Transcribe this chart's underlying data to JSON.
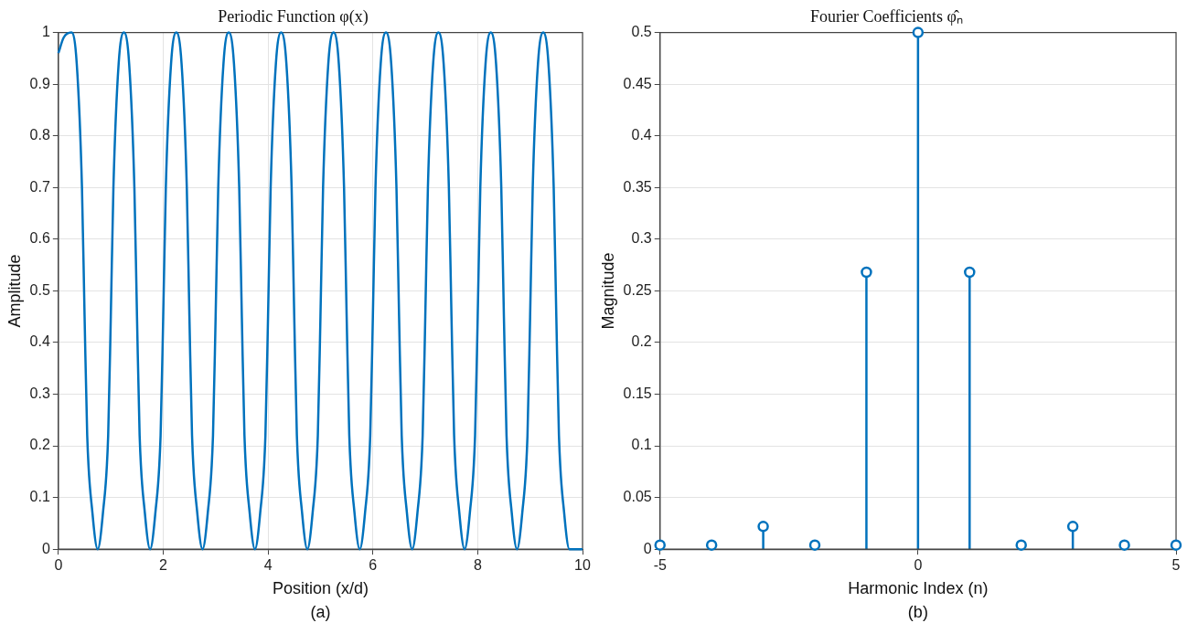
{
  "chart_data": [
    {
      "type": "line",
      "title": "Periodic Function φ(x)",
      "xlabel": "Position (x/d)",
      "ylabel": "Amplitude",
      "annotations": [
        "(a)"
      ],
      "series": [
        {
          "color": "#0072bd",
          "x": [
            0,
            0.1,
            0.25,
            0.35,
            0.45,
            0.5,
            0.55,
            0.65,
            0.75,
            0.85,
            0.95,
            1,
            1.05,
            1.15,
            1.25,
            1.35,
            1.45,
            1.5,
            1.55,
            1.65,
            1.75,
            1.85,
            1.95,
            2,
            2.05,
            2.15,
            2.25,
            2.35,
            2.45,
            2.5,
            2.55,
            2.65,
            2.75,
            2.85,
            2.95,
            3,
            3.05,
            3.15,
            3.25,
            3.35,
            3.45,
            3.5,
            3.55,
            3.65,
            3.75,
            3.85,
            3.95,
            4,
            4.05,
            4.15,
            4.25,
            4.35,
            4.45,
            4.5,
            4.55,
            4.65,
            4.75,
            4.85,
            4.95,
            5,
            5.05,
            5.15,
            5.25,
            5.35,
            5.45,
            5.5,
            5.55,
            5.65,
            5.75,
            5.85,
            5.95,
            6,
            6.05,
            6.15,
            6.25,
            6.35,
            6.45,
            6.5,
            6.55,
            6.65,
            6.75,
            6.85,
            6.95,
            7,
            7.05,
            7.15,
            7.25,
            7.35,
            7.45,
            7.5,
            7.55,
            7.65,
            7.75,
            7.85,
            7.95,
            8,
            8.05,
            8.15,
            8.25,
            8.35,
            8.45,
            8.5,
            8.55,
            8.65,
            8.75,
            8.85,
            8.95,
            9,
            9.05,
            9.15,
            9.25,
            9.35,
            9.45,
            9.5,
            9.55,
            9.65,
            9.75,
            10
          ],
          "values": [
            0.96,
            0.99,
            1,
            0.94,
            0.7,
            0.45,
            0.22,
            0.07,
            0,
            0.07,
            0.22,
            0.45,
            0.7,
            0.94,
            1,
            0.94,
            0.7,
            0.45,
            0.22,
            0.07,
            0,
            0.07,
            0.22,
            0.45,
            0.7,
            0.94,
            1,
            0.94,
            0.7,
            0.45,
            0.22,
            0.07,
            0,
            0.07,
            0.22,
            0.45,
            0.7,
            0.94,
            1,
            0.94,
            0.7,
            0.45,
            0.22,
            0.07,
            0,
            0.07,
            0.22,
            0.45,
            0.7,
            0.94,
            1,
            0.94,
            0.7,
            0.45,
            0.22,
            0.07,
            0,
            0.07,
            0.22,
            0.45,
            0.7,
            0.94,
            1,
            0.94,
            0.7,
            0.45,
            0.22,
            0.07,
            0,
            0.07,
            0.22,
            0.45,
            0.7,
            0.94,
            1,
            0.94,
            0.7,
            0.45,
            0.22,
            0.07,
            0,
            0.07,
            0.22,
            0.45,
            0.7,
            0.94,
            1,
            0.94,
            0.7,
            0.45,
            0.22,
            0.07,
            0,
            0.07,
            0.22,
            0.45,
            0.7,
            0.94,
            1,
            0.94,
            0.7,
            0.45,
            0.22,
            0.07,
            0,
            0.07,
            0.22,
            0.45,
            0.7,
            0.94,
            1,
            0.94,
            0.7,
            0.45,
            0.22,
            0.07,
            0,
            0
          ]
        }
      ],
      "xlim": [
        0,
        10
      ],
      "xticks": [
        0,
        2,
        4,
        6,
        8,
        10
      ],
      "ylim": [
        0,
        1
      ],
      "yticks": [
        0,
        0.1,
        0.2,
        0.3,
        0.4,
        0.5,
        0.6,
        0.7,
        0.8,
        0.9,
        1
      ],
      "grid": true,
      "legend": false,
      "marker": "none",
      "line_style": "solid"
    },
    {
      "type": "lollipop",
      "title": "Fourier Coefficients φ̂ₙ",
      "xlabel": "Harmonic Index (n)",
      "ylabel": "Magnitude",
      "annotations": [
        "(b)"
      ],
      "series": [
        {
          "color": "#0072bd",
          "x": [
            -5,
            -4,
            -3,
            -2,
            -1,
            0,
            1,
            2,
            3,
            4,
            5
          ],
          "values": [
            0.004,
            0.004,
            0.022,
            0.004,
            0.268,
            0.5,
            0.268,
            0.004,
            0.022,
            0.004,
            0.004
          ]
        }
      ],
      "xlim": [
        -5,
        5
      ],
      "xticks": [
        -5,
        0,
        5
      ],
      "ylim": [
        0,
        0.5
      ],
      "yticks": [
        0,
        0.05,
        0.1,
        0.15,
        0.2,
        0.25,
        0.3,
        0.35,
        0.4,
        0.45,
        0.5
      ],
      "grid": true,
      "legend": false,
      "marker": "circle"
    }
  ]
}
